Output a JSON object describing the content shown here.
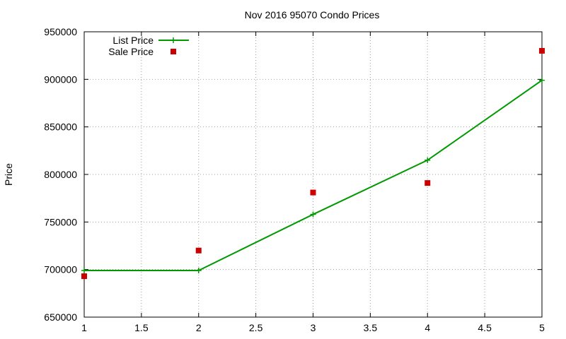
{
  "chart_data": {
    "type": "line",
    "title": "Nov 2016 95070 Condo Prices",
    "xlabel": "",
    "ylabel": "Price",
    "xlim": [
      1,
      5
    ],
    "ylim": [
      650000,
      950000
    ],
    "x_ticks": [
      1,
      1.5,
      2,
      2.5,
      3,
      3.5,
      4,
      4.5,
      5
    ],
    "x_tick_labels": [
      "1",
      "1.5",
      "2",
      "2.5",
      "3",
      "3.5",
      "4",
      "4.5",
      "5"
    ],
    "y_ticks": [
      650000,
      700000,
      750000,
      800000,
      850000,
      900000,
      950000
    ],
    "y_tick_labels": [
      "650000",
      "700000",
      "750000",
      "800000",
      "850000",
      "900000",
      "950000"
    ],
    "grid": true,
    "legend_position": "top-left",
    "series": [
      {
        "name": "List Price",
        "style": "lines+points",
        "marker": "plus",
        "color": "#009900",
        "x": [
          1,
          2,
          3,
          4,
          5
        ],
        "y": [
          699000,
          699000,
          758000,
          815000,
          899000
        ]
      },
      {
        "name": "Sale Price",
        "style": "points",
        "marker": "square",
        "color": "#cc0000",
        "x": [
          1,
          2,
          3,
          4,
          5
        ],
        "y": [
          693000,
          720000,
          781000,
          791000,
          930000
        ]
      }
    ]
  }
}
